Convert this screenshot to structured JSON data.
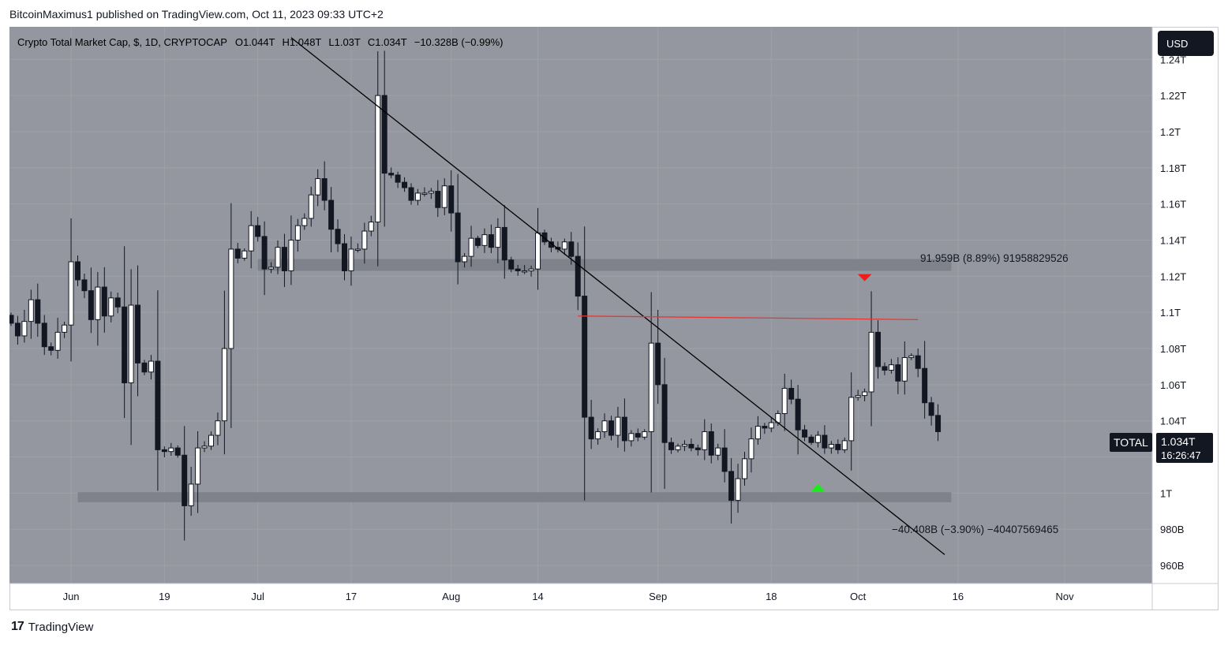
{
  "header": {
    "publisher_line": "BitcoinMaximus1 published on TradingView.com, Oct 11, 2023 09:33 UTC+2"
  },
  "legend": {
    "symbol": "Crypto Total Market Cap, $, 1D, CRYPTOCAP",
    "o_label": "O",
    "o_value": "1.044T",
    "h_label": "H",
    "h_value": "1.048T",
    "l_label": "L",
    "l_value": "1.03T",
    "c_label": "C",
    "c_value": "1.034T",
    "change": "−10.328B (−0.99%)"
  },
  "currency_button": "USD",
  "price_tag": {
    "symbol": "TOTAL",
    "price": "1.034T",
    "countdown": "16:26:47"
  },
  "measure_up": "91.959B (8.89%) 91958829526",
  "measure_down": "−40.408B (−3.90%) −40407569465",
  "footer": {
    "brand": "TradingView",
    "logo_mark": "17"
  },
  "colors": {
    "plot_bg": "#94979f",
    "up_candle": "#ffffff",
    "down_candle": "#131722",
    "zone": "#7f828a",
    "trendline": "#000000",
    "resistance_line": "#e53935",
    "arrow_down": "#f01d1d",
    "arrow_up": "#1ee81e"
  },
  "chart_data": {
    "type": "candlestick",
    "title": "Crypto Total Market Cap, $, 1D, CRYPTOCAP",
    "y_unit": "USD",
    "ylim": [
      950000000000,
      1258000000000
    ],
    "y_ticks": [
      {
        "v": 1240000000000,
        "label": "1.24T"
      },
      {
        "v": 1220000000000,
        "label": "1.22T"
      },
      {
        "v": 1200000000000,
        "label": "1.2T"
      },
      {
        "v": 1180000000000,
        "label": "1.18T"
      },
      {
        "v": 1160000000000,
        "label": "1.16T"
      },
      {
        "v": 1140000000000,
        "label": "1.14T"
      },
      {
        "v": 1120000000000,
        "label": "1.12T"
      },
      {
        "v": 1100000000000,
        "label": "1.1T"
      },
      {
        "v": 1080000000000,
        "label": "1.08T"
      },
      {
        "v": 1060000000000,
        "label": "1.06T"
      },
      {
        "v": 1040000000000,
        "label": "1.04T"
      },
      {
        "v": 1020000000000,
        "label": "1.02T"
      },
      {
        "v": 1000000000000,
        "label": "1T"
      },
      {
        "v": 980000000000,
        "label": "980B"
      },
      {
        "v": 960000000000,
        "label": "960B"
      }
    ],
    "x_ticks": [
      {
        "d": "2023-06-05",
        "label": "Jun"
      },
      {
        "d": "2023-06-19",
        "label": "19"
      },
      {
        "d": "2023-07-03",
        "label": "Jul"
      },
      {
        "d": "2023-07-17",
        "label": "17"
      },
      {
        "d": "2023-08-01",
        "label": "Aug"
      },
      {
        "d": "2023-08-14",
        "label": "14"
      },
      {
        "d": "2023-09-01",
        "label": "Sep"
      },
      {
        "d": "2023-09-18",
        "label": "18"
      },
      {
        "d": "2023-10-01",
        "label": "Oct"
      },
      {
        "d": "2023-10-16",
        "label": "16"
      },
      {
        "d": "2023-11-01",
        "label": "Nov"
      }
    ],
    "x_start": "2023-05-27",
    "closes": [
      1094000000000.0,
      1087000000000.0,
      1095000000000.0,
      1107000000000.0,
      1094000000000.0,
      1081000000000.0,
      1079000000000.0,
      1089000000000.0,
      1093000000000.0,
      1128000000000.0,
      1118000000000.0,
      1112000000000.0,
      1096000000000.0,
      1114000000000.0,
      1098000000000.0,
      1108000000000.0,
      1103000000000.0,
      1061000000000.0,
      1104000000000.0,
      1072000000000.0,
      1067000000000.0,
      1073000000000.0,
      1024000000000.0,
      1023000000000.0,
      1025000000000.0,
      1021000000000.0,
      993000000000.0,
      1005000000000.0,
      1025000000000.0,
      1026000000000.0,
      1032000000000.0,
      1040000000000.0,
      1080000000000.0,
      1135000000000.0,
      1130000000000.0,
      1134000000000.0,
      1148000000000.0,
      1142000000000.0,
      1124000000000.0,
      1125000000000.0,
      1136000000000.0,
      1123000000000.0,
      1140000000000.0,
      1148000000000.0,
      1152000000000.0,
      1165000000000.0,
      1174000000000.0,
      1162000000000.0,
      1146000000000.0,
      1138000000000.0,
      1123000000000.0,
      1135000000000.0,
      1135000000000.0,
      1145000000000.0,
      1150000000000.0,
      1220000000000.0,
      1177000000000.0,
      1176000000000.0,
      1172000000000.0,
      1169000000000.0,
      1162000000000.0,
      1166000000000.0,
      1166000000000.0,
      1167000000000.0,
      1158000000000.0,
      1170000000000.0,
      1155000000000.0,
      1128000000000.0,
      1131000000000.0,
      1141000000000.0,
      1137000000000.0,
      1143000000000.0,
      1136000000000.0,
      1147000000000.0,
      1129000000000.0,
      1124000000000.0,
      1123000000000.0,
      1123000000000.0,
      1124000000000.0,
      1144000000000.0,
      1139000000000.0,
      1136000000000.0,
      1135000000000.0,
      1139000000000.0,
      1131000000000.0,
      1109000000000.0,
      1042000000000.0,
      1030000000000.0,
      1034000000000.0,
      1040000000000.0,
      1032000000000.0,
      1042000000000.0,
      1029000000000.0,
      1033000000000.0,
      1031000000000.0,
      1034000000000.0,
      1083000000000.0,
      1060000000000.0,
      1028000000000.0,
      1024000000000.0,
      1026000000000.0,
      1027000000000.0,
      1025000000000.0,
      1024000000000.0,
      1034000000000.0,
      1021000000000.0,
      1025000000000.0,
      1012000000000.0,
      996000000000.0,
      1008000000000.0,
      1019000000000.0,
      1030000000000.0,
      1037000000000.0,
      1036000000000.0,
      1039000000000.0,
      1044000000000.0,
      1058000000000.0,
      1052000000000.0,
      1035000000000.0,
      1031000000000.0,
      1028000000000.0,
      1032000000000.0,
      1025000000000.0,
      1027000000000.0,
      1024000000000.0,
      1029000000000.0,
      1053000000000.0,
      1054000000000.0,
      1056000000000.0,
      1089000000000.0,
      1070000000000.0,
      1068000000000.0,
      1071000000000.0,
      1062000000000.0,
      1075000000000.0,
      1076000000000.0,
      1069000000000.0,
      1050000000000.0,
      1043000000000.0,
      1034000000000.0
    ],
    "trendline": {
      "from": [
        "2023-07-08",
        1252000000000.0
      ],
      "to": [
        "2023-10-14",
        966000000000.0
      ]
    },
    "resistance_line": {
      "from": [
        "2023-08-20",
        1098000000000.0
      ],
      "to": [
        "2023-10-10",
        1096000000000.0
      ]
    },
    "support_zone": {
      "from": "2023-06-06",
      "to": "2023-10-15",
      "low": 995000000000.0,
      "high": 1000500000000.0
    },
    "resistance_zone": {
      "from": "2023-07-03",
      "to": "2023-10-15",
      "low": 1123000000000.0,
      "high": 1129500000000.0
    },
    "down_arrow": {
      "d": "2023-10-02",
      "v": 1119000000000.0
    },
    "up_arrow": {
      "d": "2023-09-25",
      "v": 1003000000000.0
    }
  }
}
